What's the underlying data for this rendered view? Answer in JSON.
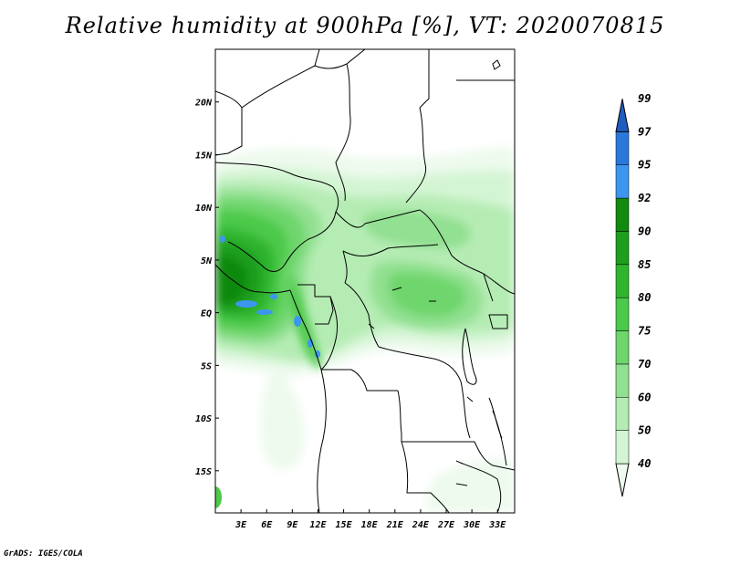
{
  "title": "Relative humidity at 900hPa [%], VT: 2020070815",
  "footer": "GrADS: IGES/COLA",
  "map": {
    "lon_range": [
      0,
      35
    ],
    "lat_range": [
      -19,
      25
    ],
    "lat_ticks": [
      "20N",
      "15N",
      "10N",
      "5N",
      "EQ",
      "5S",
      "10S",
      "15S"
    ],
    "lon_ticks": [
      "3E",
      "6E",
      "9E",
      "12E",
      "15E",
      "18E",
      "21E",
      "24E",
      "27E",
      "30E",
      "33E"
    ],
    "shading_colors": {
      "40-50": "#eefaee",
      "50-60": "#d4f5d4",
      "60-70": "#b5ecb4",
      "70-75": "#92e091",
      "75-80": "#6ed66c",
      "80-85": "#4bc94a",
      "85-90": "#2fb42e",
      "90-92": "#1e9e1d",
      "92-95": "#118a10",
      "95-97": "#3c96f0",
      "97-99": "#2a78dc",
      "99+": "#1e5cc0"
    }
  },
  "colorbar": {
    "labels": [
      "40",
      "50",
      "60",
      "70",
      "75",
      "80",
      "85",
      "90",
      "92",
      "95",
      "97",
      "99"
    ],
    "colors": [
      "#eefaee",
      "#d4f5d4",
      "#b5ecb4",
      "#92e091",
      "#6ed66c",
      "#4bc94a",
      "#2fb42e",
      "#1e9e1d",
      "#118a10",
      "#3c96f0",
      "#2a78dc",
      "#1e5cc0"
    ]
  }
}
